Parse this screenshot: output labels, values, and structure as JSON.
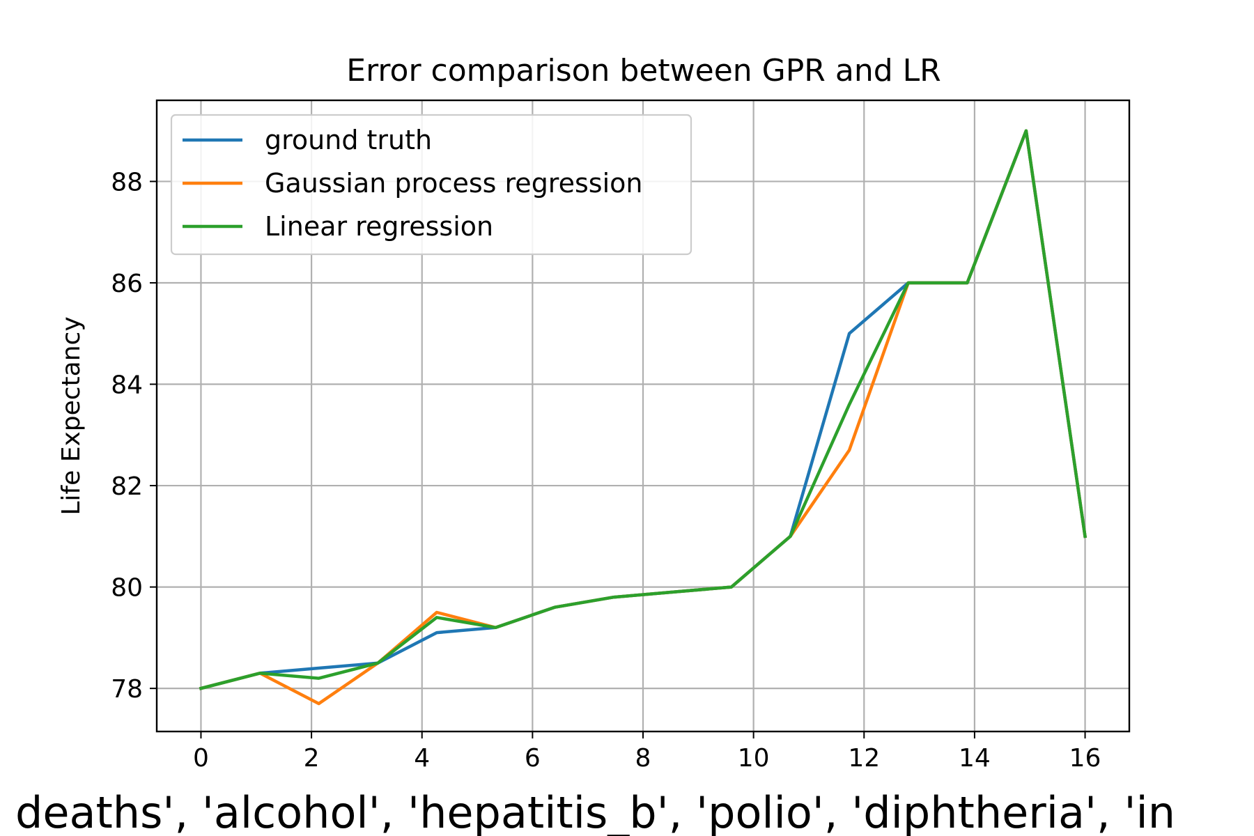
{
  "chart_data": {
    "type": "line",
    "title": "Error comparison between GPR and LR",
    "xlabel": "deaths', 'alcohol', 'hepatitis_b', 'polio', 'diphtheria', 'in",
    "ylabel": "Life Expectancy",
    "xlim": [
      -0.8,
      16.8
    ],
    "ylim": [
      77.15,
      89.6
    ],
    "xticks": [
      0,
      2,
      4,
      6,
      8,
      10,
      12,
      14,
      16
    ],
    "yticks": [
      78,
      80,
      82,
      84,
      86,
      88
    ],
    "grid": true,
    "legend_position": "top-left",
    "x": [
      0,
      1.067,
      2.133,
      3.2,
      4.267,
      5.333,
      6.4,
      7.467,
      8.533,
      9.6,
      10.667,
      11.733,
      12.8,
      13.867,
      14.933,
      16
    ],
    "series": [
      {
        "name": "ground truth",
        "color": "#1f77b4",
        "values": [
          78.0,
          78.3,
          78.4,
          78.5,
          79.1,
          79.2,
          79.6,
          79.8,
          79.9,
          80.0,
          81.0,
          85.0,
          86.0,
          86.0,
          89.0,
          81.0
        ]
      },
      {
        "name": "Gaussian process regression",
        "color": "#ff7f0e",
        "values": [
          78.0,
          78.3,
          77.7,
          78.5,
          79.5,
          79.2,
          79.6,
          79.8,
          79.9,
          80.0,
          81.0,
          82.7,
          86.0,
          86.0,
          89.0,
          81.0
        ]
      },
      {
        "name": "Linear regression",
        "color": "#2ca02c",
        "values": [
          78.0,
          78.3,
          78.2,
          78.5,
          79.4,
          79.2,
          79.6,
          79.8,
          79.9,
          80.0,
          81.0,
          83.6,
          86.0,
          86.0,
          89.0,
          81.0
        ]
      }
    ]
  }
}
